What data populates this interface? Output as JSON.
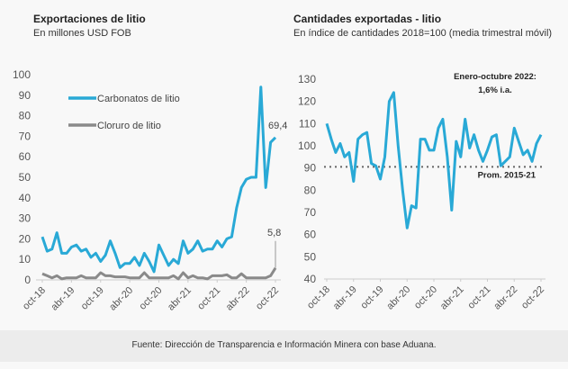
{
  "chart_data": [
    {
      "type": "line",
      "title": "Exportaciones de litio",
      "subtitle": "En millones USD FOB",
      "ylim": [
        0,
        100
      ],
      "yticks": [
        0,
        10,
        20,
        30,
        40,
        50,
        60,
        70,
        80,
        90,
        100
      ],
      "xtick_labels": [
        "oct-18",
        "abr-19",
        "oct-19",
        "abr-20",
        "oct-20",
        "abr-21",
        "oct-21",
        "abr-22",
        "oct-22"
      ],
      "legend": "top-left",
      "series": [
        {
          "name": "Carbonatos de litio",
          "color": "#29a9d6",
          "end_label": "69,4",
          "values": [
            21,
            14,
            15,
            23,
            13,
            13,
            16,
            17,
            14,
            15,
            11,
            13,
            9,
            12,
            19,
            13,
            6,
            8,
            8,
            11,
            7,
            13,
            9,
            4,
            17,
            12,
            7,
            10,
            8,
            19,
            13,
            15,
            19,
            14,
            15,
            15,
            19,
            16,
            20,
            21,
            35,
            45,
            49,
            50,
            50,
            94,
            45,
            67,
            69.4
          ]
        },
        {
          "name": "Cloruro de litio",
          "color": "#8a8a8a",
          "end_label": "5,8",
          "values": [
            3,
            2,
            1,
            2,
            0.5,
            1,
            1,
            1,
            2,
            1,
            1,
            1,
            3.5,
            2,
            2,
            1.5,
            1.5,
            1.5,
            1,
            1,
            1,
            3.5,
            1,
            1,
            1,
            1,
            1,
            2,
            0.5,
            3.5,
            1,
            2,
            1,
            1,
            0.5,
            2,
            2,
            2,
            2.5,
            1,
            1,
            3,
            1,
            1,
            1,
            1,
            1,
            2,
            5.8
          ]
        }
      ]
    },
    {
      "type": "line",
      "title": "Cantidades exportadas - litio",
      "subtitle": "En índice de cantidades 2018=100 (media trimestral móvil)",
      "ylim": [
        40,
        130
      ],
      "yticks": [
        40,
        50,
        60,
        70,
        80,
        90,
        100,
        110,
        120,
        130
      ],
      "xtick_labels": [
        "oct-18",
        "abr-19",
        "oct-19",
        "abr-20",
        "oct-20",
        "abr-21",
        "oct-21",
        "abr-22",
        "oct-22"
      ],
      "series": [
        {
          "color": "#29a9d6",
          "values": [
            110,
            103,
            97,
            101,
            95,
            97,
            84,
            103,
            105,
            106,
            92,
            91,
            85,
            95,
            120,
            124,
            100,
            80,
            63,
            73,
            72,
            103,
            103,
            98,
            98,
            108,
            112,
            95,
            71,
            102,
            95,
            112,
            99,
            105,
            98,
            93,
            98,
            104,
            105,
            91,
            93,
            95,
            108,
            102,
            96,
            98,
            93,
            101,
            105
          ]
        }
      ],
      "reference_line": {
        "value": 90.5,
        "label": "Prom. 2015-21",
        "color": "#666666"
      },
      "annotation": [
        "Enero-octubre 2022:",
        "1,6% i.a."
      ]
    }
  ],
  "footer": "Fuente: Dirección de Transparencia e Información Minera con base Aduana."
}
